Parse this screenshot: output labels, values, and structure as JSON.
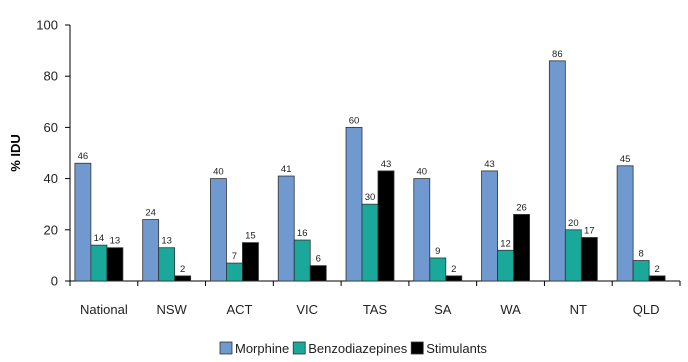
{
  "chart_data": {
    "type": "bar",
    "ylabel": "% IDU",
    "ylim": [
      0,
      100
    ],
    "yticks": [
      0,
      20,
      40,
      60,
      80,
      100
    ],
    "grid": false,
    "legend_position": "bottom-center",
    "categories": [
      "National",
      "NSW",
      "ACT",
      "VIC",
      "TAS",
      "SA",
      "WA",
      "NT",
      "QLD"
    ],
    "series": [
      {
        "name": "Morphine",
        "color": "#6f99cf",
        "values": [
          46,
          24,
          40,
          41,
          60,
          40,
          43,
          86,
          45
        ]
      },
      {
        "name": "Benzodiazepines",
        "color": "#1aa89a",
        "values": [
          14,
          13,
          7,
          16,
          30,
          9,
          12,
          20,
          8
        ]
      },
      {
        "name": "Stimulants",
        "color": "#000000",
        "values": [
          13,
          2,
          15,
          6,
          43,
          2,
          26,
          17,
          2
        ]
      }
    ]
  }
}
